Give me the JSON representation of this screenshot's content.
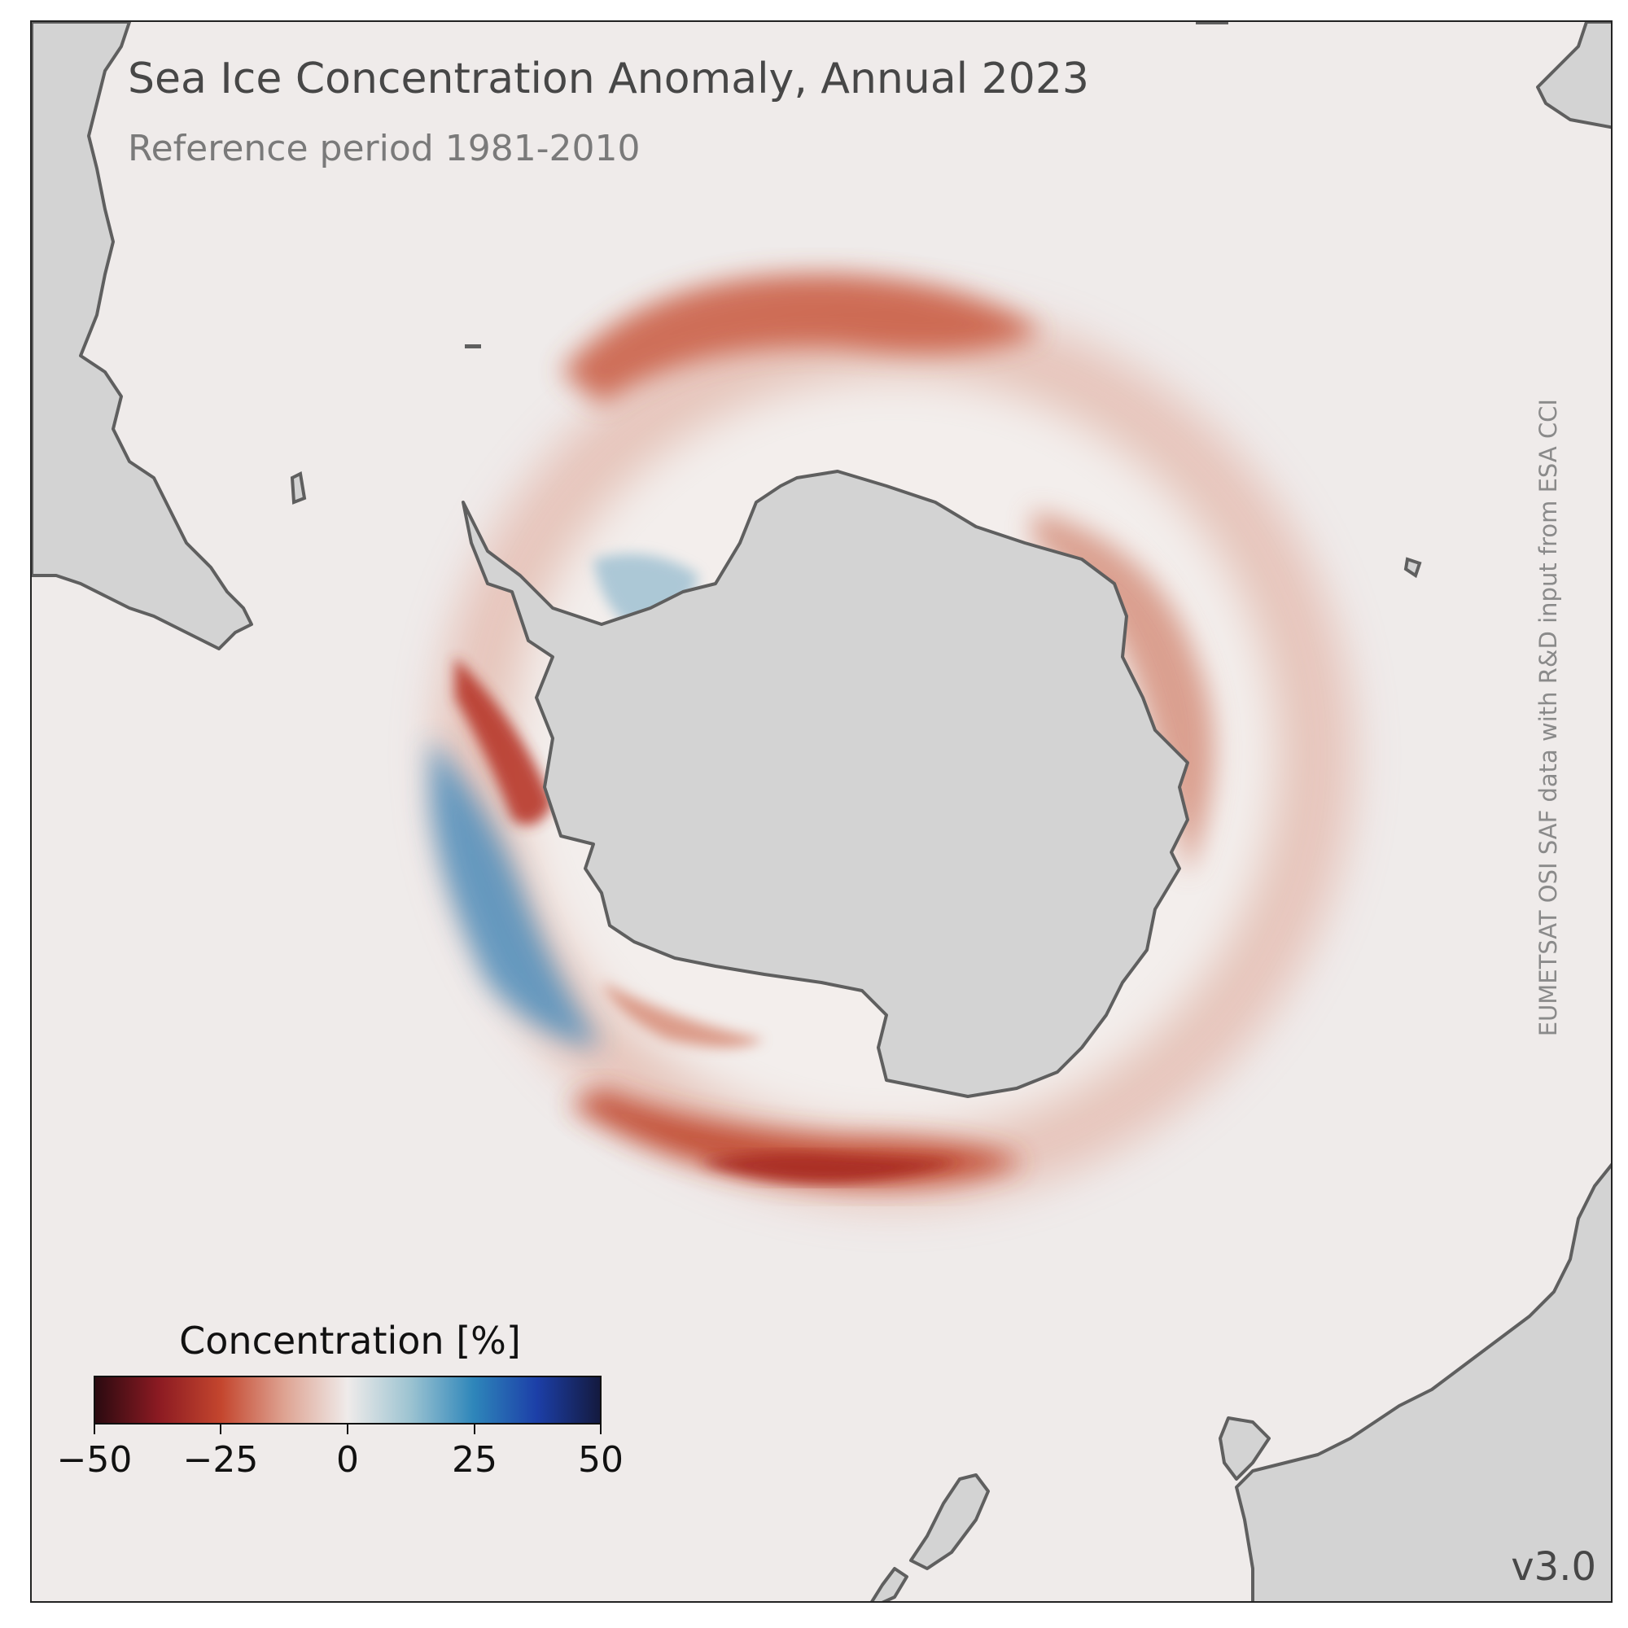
{
  "title": "Sea Ice Concentration Anomaly, Annual 2023",
  "subtitle": "Reference period 1981-2010",
  "credit": "EUMETSAT OSI SAF data with R&D input from ESA CCI",
  "version": "v3.0",
  "colorbar": {
    "title": "Concentration [%]",
    "ticks": [
      "−50",
      "−25",
      "0",
      "25",
      "50"
    ],
    "range": [
      -50,
      50
    ],
    "colors": [
      "#2b0a10",
      "#8b1a22",
      "#c4462e",
      "#dea392",
      "#efebea",
      "#9cc3d1",
      "#2e86ba",
      "#1c3fa8",
      "#141a3f"
    ]
  },
  "colors": {
    "ocean": "#efebea",
    "land": "#d3d3d3",
    "coastline": "#5f5f5f",
    "negative_anomaly": "#c0442c",
    "positive_anomaly": "#3a88bd"
  }
}
